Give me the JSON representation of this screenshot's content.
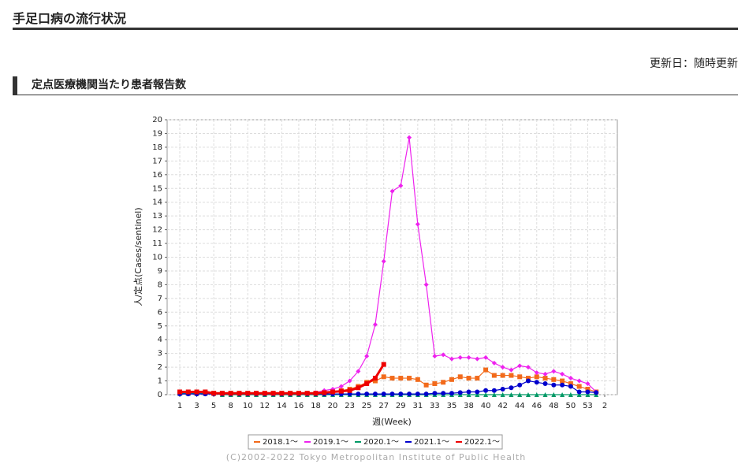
{
  "header": {
    "title": "手足口病の流行状況",
    "updated": "更新日：随時更新",
    "section": "定点医療機関当たり患者報告数"
  },
  "chart_data": {
    "type": "line",
    "y_label": "人/定点(Cases/sentinel)",
    "x_label": "週(Week)",
    "credit": "(C)2002-2022 Tokyo Metropolitan Institute of Public Health",
    "categories": [
      "1",
      null,
      "3",
      null,
      "5",
      null,
      "8",
      null,
      "10",
      null,
      "12",
      null,
      "14",
      null,
      "16",
      null,
      "18",
      null,
      "20",
      null,
      "23",
      null,
      "25",
      null,
      "27",
      null,
      "29",
      null,
      "31",
      null,
      "33",
      null,
      "35",
      null,
      "38",
      null,
      "40",
      null,
      "42",
      null,
      "44",
      null,
      "46",
      null,
      "48",
      null,
      "50",
      null,
      "53",
      null,
      "2"
    ],
    "ylim": [
      0,
      20
    ],
    "yticks": [
      0,
      1,
      2,
      3,
      4,
      5,
      6,
      7,
      8,
      9,
      10,
      11,
      12,
      13,
      14,
      15,
      16,
      17,
      18,
      19,
      20
    ],
    "grid": true,
    "series": [
      {
        "name": "2018.1～",
        "color": "#f26a1b",
        "marker": "square",
        "values": [
          0.1,
          0.1,
          0.1,
          0.1,
          0.1,
          0.1,
          0.1,
          0.1,
          0.1,
          0.1,
          0.1,
          0.1,
          0.1,
          0.1,
          0.1,
          0.1,
          0.1,
          0.1,
          0.2,
          0.3,
          0.4,
          0.6,
          0.9,
          1.0,
          1.3,
          1.2,
          1.2,
          1.2,
          1.1,
          0.7,
          0.8,
          0.9,
          1.1,
          1.3,
          1.2,
          1.2,
          1.8,
          1.4,
          1.4,
          1.4,
          1.3,
          1.2,
          1.3,
          1.2,
          1.1,
          1.0,
          0.8,
          0.6,
          0.4,
          0.2,
          null
        ]
      },
      {
        "name": "2019.1～",
        "color": "#ee22ee",
        "marker": "diamond",
        "values": [
          0.1,
          0.1,
          0.1,
          0.1,
          0.1,
          0.1,
          0.1,
          0.1,
          0.1,
          0.1,
          0.1,
          0.1,
          0.1,
          0.1,
          0.1,
          0.1,
          0.15,
          0.3,
          0.4,
          0.6,
          1.0,
          1.7,
          2.8,
          5.1,
          9.7,
          14.8,
          15.2,
          18.7,
          12.4,
          8.0,
          2.8,
          2.9,
          2.6,
          2.7,
          2.7,
          2.6,
          2.7,
          2.3,
          2.0,
          1.8,
          2.1,
          2.0,
          1.6,
          1.5,
          1.7,
          1.5,
          1.2,
          1.0,
          0.8,
          0.2,
          null
        ]
      },
      {
        "name": "2020.1～",
        "color": "#009966",
        "marker": "triangle",
        "values": [
          0.1,
          0.1,
          0.1,
          0.1,
          0.1,
          0.0,
          0.0,
          0.0,
          0.0,
          0.0,
          0.0,
          0.0,
          0.0,
          0.0,
          0.0,
          0.0,
          0.0,
          0.0,
          0.0,
          0.0,
          0.0,
          0.0,
          0.0,
          0.0,
          0.0,
          0.0,
          0.0,
          0.0,
          0.0,
          0.0,
          0.0,
          0.0,
          0.0,
          0.0,
          0.0,
          0.0,
          0.0,
          0.0,
          0.0,
          0.0,
          0.0,
          0.0,
          0.0,
          0.0,
          0.0,
          0.0,
          0.0,
          0.0,
          0.0,
          0.0,
          null
        ]
      },
      {
        "name": "2021.1～",
        "color": "#0000cc",
        "marker": "circle",
        "values": [
          0.05,
          0.05,
          0.05,
          0.05,
          0.05,
          0.05,
          0.05,
          0.05,
          0.05,
          0.05,
          0.05,
          0.05,
          0.05,
          0.05,
          0.05,
          0.05,
          0.05,
          0.05,
          0.05,
          0.05,
          0.05,
          0.05,
          0.05,
          0.05,
          0.05,
          0.05,
          0.05,
          0.05,
          0.05,
          0.05,
          0.1,
          0.1,
          0.1,
          0.15,
          0.2,
          0.2,
          0.3,
          0.3,
          0.4,
          0.5,
          0.7,
          1.0,
          0.9,
          0.8,
          0.7,
          0.7,
          0.6,
          0.2,
          0.2,
          0.15,
          null
        ]
      },
      {
        "name": "2022.1～",
        "color": "#ee0000",
        "marker": "square",
        "width": 3,
        "values": [
          0.2,
          0.2,
          0.2,
          0.2,
          0.1,
          0.1,
          0.1,
          0.1,
          0.1,
          0.1,
          0.1,
          0.1,
          0.1,
          0.1,
          0.1,
          0.1,
          0.1,
          0.15,
          0.2,
          0.25,
          0.3,
          0.5,
          0.8,
          1.2,
          2.2,
          null,
          null,
          null,
          null,
          null,
          null,
          null,
          null,
          null,
          null,
          null,
          null,
          null,
          null,
          null,
          null,
          null,
          null,
          null,
          null,
          null,
          null,
          null,
          null,
          null,
          null
        ]
      }
    ]
  }
}
